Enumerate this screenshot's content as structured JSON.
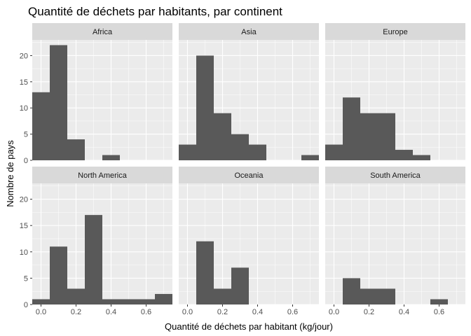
{
  "chart_data": {
    "type": "bar",
    "title": "Quantité de déchets par habitants, par continent",
    "xlabel": "Quantité de déchets par habitant (kg/jour)",
    "ylabel": "Nombre de pays",
    "xlim": [
      -0.05,
      0.75
    ],
    "ylim": [
      0,
      23
    ],
    "xticks": [
      0.0,
      0.2,
      0.4,
      0.6
    ],
    "xtick_labels": [
      "0.0",
      "0.2",
      "0.4",
      "0.6"
    ],
    "yticks": [
      0,
      5,
      10,
      15,
      20
    ],
    "ytick_labels": [
      "0",
      "5",
      "10",
      "15",
      "20"
    ],
    "bin_width": 0.1,
    "grid": true,
    "bar_color": "#595959",
    "panel_background": "#ebebeb",
    "strip_background": "#d9d9d9",
    "facets": [
      {
        "label": "Africa",
        "bars": [
          {
            "x": 0.0,
            "count": 13
          },
          {
            "x": 0.1,
            "count": 22
          },
          {
            "x": 0.2,
            "count": 4
          },
          {
            "x": 0.4,
            "count": 1
          }
        ]
      },
      {
        "label": "Asia",
        "bars": [
          {
            "x": 0.0,
            "count": 3
          },
          {
            "x": 0.1,
            "count": 20
          },
          {
            "x": 0.2,
            "count": 9
          },
          {
            "x": 0.3,
            "count": 5
          },
          {
            "x": 0.4,
            "count": 3
          },
          {
            "x": 0.7,
            "count": 1
          }
        ]
      },
      {
        "label": "Europe",
        "bars": [
          {
            "x": 0.0,
            "count": 3
          },
          {
            "x": 0.1,
            "count": 12
          },
          {
            "x": 0.2,
            "count": 9
          },
          {
            "x": 0.3,
            "count": 9
          },
          {
            "x": 0.4,
            "count": 2
          },
          {
            "x": 0.5,
            "count": 1
          }
        ]
      },
      {
        "label": "North America",
        "bars": [
          {
            "x": 0.0,
            "count": 1
          },
          {
            "x": 0.1,
            "count": 11
          },
          {
            "x": 0.2,
            "count": 3
          },
          {
            "x": 0.3,
            "count": 17
          },
          {
            "x": 0.4,
            "count": 1
          },
          {
            "x": 0.5,
            "count": 1
          },
          {
            "x": 0.6,
            "count": 1
          },
          {
            "x": 0.7,
            "count": 2
          }
        ]
      },
      {
        "label": "Oceania",
        "bars": [
          {
            "x": 0.1,
            "count": 12
          },
          {
            "x": 0.2,
            "count": 3
          },
          {
            "x": 0.3,
            "count": 7
          }
        ]
      },
      {
        "label": "South America",
        "bars": [
          {
            "x": 0.1,
            "count": 5
          },
          {
            "x": 0.2,
            "count": 3
          },
          {
            "x": 0.3,
            "count": 3
          },
          {
            "x": 0.6,
            "count": 1
          }
        ]
      }
    ]
  }
}
